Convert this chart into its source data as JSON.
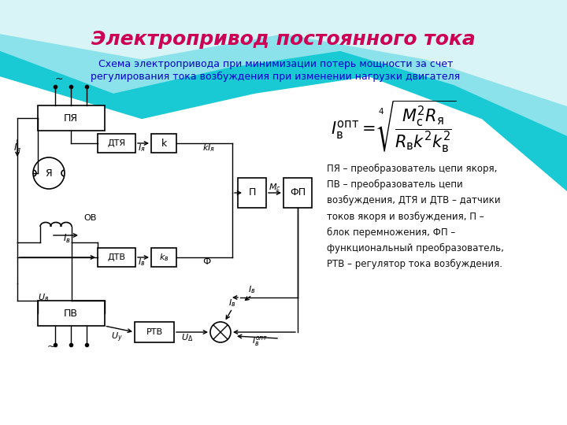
{
  "title": "Электропривод постоянного тока",
  "title_color": "#cc0055",
  "subtitle_line1": "Схема электропривода при минимизации потерь мощности за счет",
  "subtitle_line2": "регулирования тока возбуждения при изменении нагрузки двигателя",
  "subtitle_color": "#0000cc",
  "description": "ПЯ – преобразователь цепи якоря,\nПВ – преобразователь цепи\nвозбуждения, ДТЯ и ДТВ – датчики\nтоков якоря и возбуждения, П –\nблок перемножения, ФП –\nфункциональный преобразователь,\nРТВ – регулятор тока возбуждения.",
  "description_color": "#111111",
  "wave1_color": "#00bcd4",
  "wave2_color": "#80deea",
  "wave3_color": "#e0f7fa"
}
